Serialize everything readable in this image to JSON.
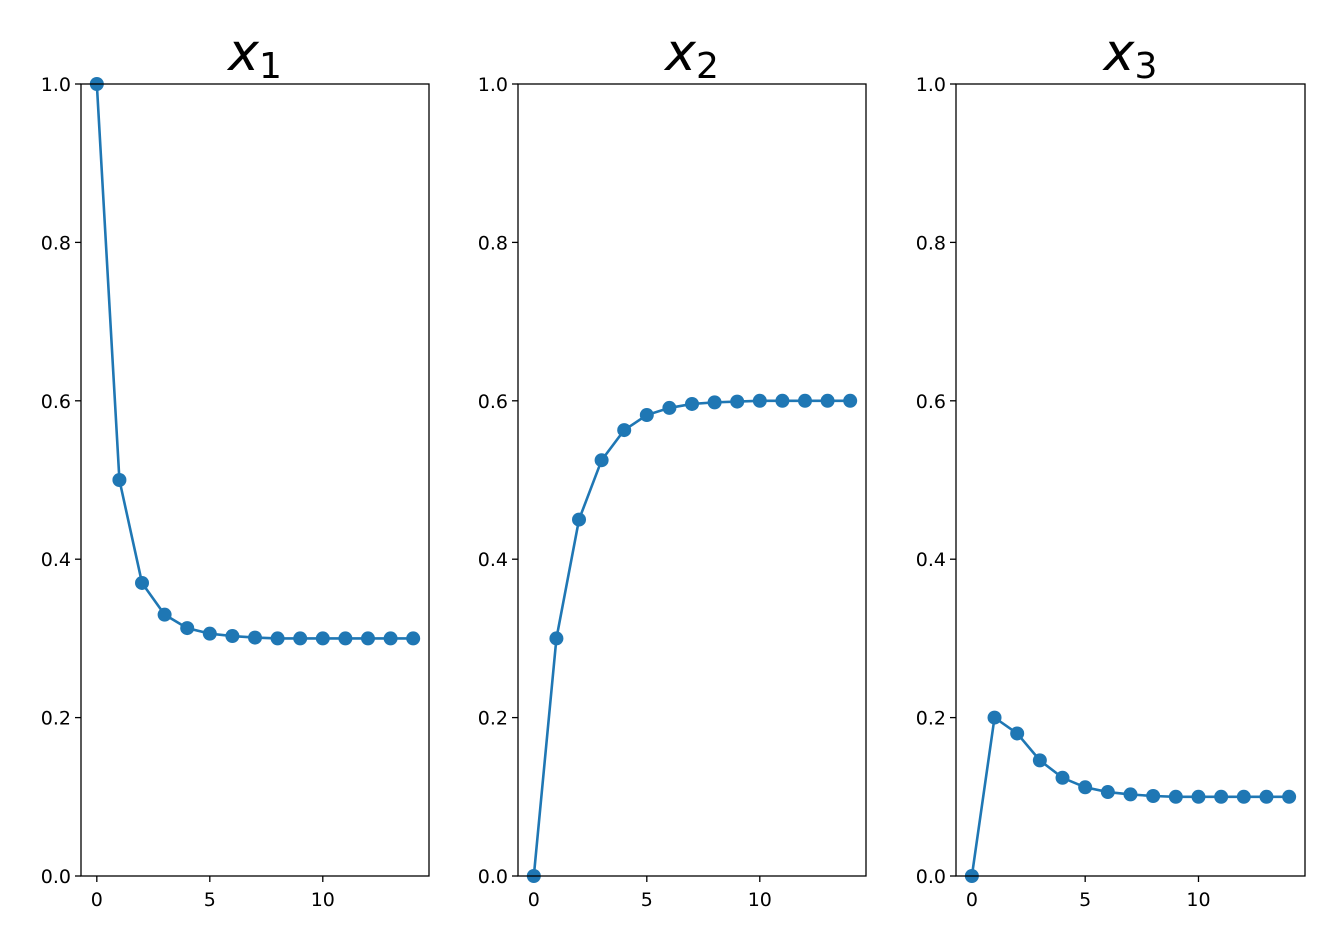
{
  "chart_data": [
    {
      "type": "line",
      "title": {
        "text": "x",
        "subscript": "1"
      },
      "x": [
        0,
        1,
        2,
        3,
        4,
        5,
        6,
        7,
        8,
        9,
        10,
        11,
        12,
        13,
        14
      ],
      "series": [
        {
          "color": "#1f77b4",
          "values": [
            1.0,
            0.5,
            0.37,
            0.33,
            0.313,
            0.306,
            0.303,
            0.301,
            0.3,
            0.3,
            0.3,
            0.3,
            0.3,
            0.3,
            0.3
          ]
        }
      ],
      "xlim": [
        -0.7,
        14.7
      ],
      "xticks": [
        0,
        5,
        10
      ],
      "ylim": [
        0,
        1
      ],
      "yticks": [
        {
          "value": 0,
          "label": "0.0"
        },
        0.2,
        0.4,
        0.6,
        0.8,
        {
          "value": 1,
          "label": "1.0"
        }
      ],
      "markers": true
    },
    {
      "type": "line",
      "title": {
        "text": "x",
        "subscript": "2"
      },
      "x": [
        0,
        1,
        2,
        3,
        4,
        5,
        6,
        7,
        8,
        9,
        10,
        11,
        12,
        13,
        14
      ],
      "series": [
        {
          "color": "#1f77b4",
          "values": [
            0,
            0.3,
            0.45,
            0.525,
            0.563,
            0.582,
            0.591,
            0.596,
            0.598,
            0.599,
            0.6,
            0.6,
            0.6,
            0.6,
            0.6
          ]
        }
      ],
      "xlim": [
        -0.7,
        14.7
      ],
      "xticks": [
        0,
        5,
        10
      ],
      "ylim": [
        0,
        1
      ],
      "yticks": [
        {
          "value": 0,
          "label": "0.0"
        },
        0.2,
        0.4,
        0.6,
        0.8,
        {
          "value": 1,
          "label": "1.0"
        }
      ],
      "markers": true
    },
    {
      "type": "line",
      "title": {
        "text": "x",
        "subscript": "3"
      },
      "x": [
        0,
        1,
        2,
        3,
        4,
        5,
        6,
        7,
        8,
        9,
        10,
        11,
        12,
        13,
        14
      ],
      "series": [
        {
          "color": "#1f77b4",
          "values": [
            0,
            0.2,
            0.18,
            0.146,
            0.124,
            0.112,
            0.106,
            0.103,
            0.101,
            0.1,
            0.1,
            0.1,
            0.1,
            0.1,
            0.1
          ]
        }
      ],
      "xlim": [
        -0.7,
        14.7
      ],
      "xticks": [
        0,
        5,
        10
      ],
      "ylim": [
        0,
        1
      ],
      "yticks": [
        {
          "value": 0,
          "label": "0.0"
        },
        0.2,
        0.4,
        0.6,
        0.8,
        {
          "value": 1,
          "label": "1.0"
        }
      ],
      "markers": true
    }
  ]
}
